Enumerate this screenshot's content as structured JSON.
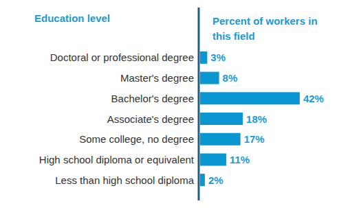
{
  "chart_data": {
    "type": "bar",
    "orientation": "horizontal",
    "ylabel": "Education level",
    "xlabel": "Percent of workers in this field",
    "categories": [
      "Doctoral or professional degree",
      "Master's degree",
      "Bachelor's degree",
      "Associate's degree",
      "Some college, no degree",
      "High school diploma or equivalent",
      "Less than high school diploma"
    ],
    "values": [
      3,
      8,
      42,
      18,
      17,
      11,
      2
    ],
    "value_labels": [
      "3%",
      "8%",
      "42%",
      "18%",
      "17%",
      "11%",
      "2%"
    ],
    "color": "#0a96d1",
    "xlim": [
      0,
      60
    ],
    "grid": false,
    "data_labels": true,
    "tick_labels": "y"
  }
}
